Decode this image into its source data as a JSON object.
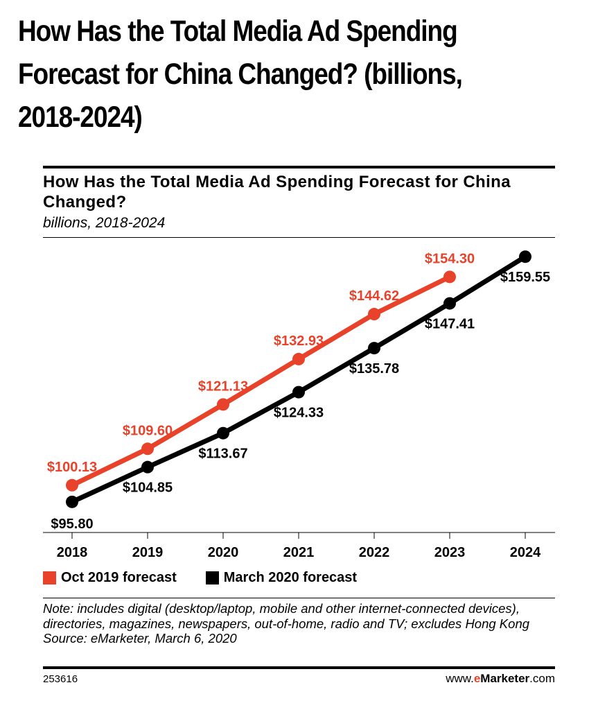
{
  "page": {
    "title": "How Has the Total Media Ad Spending Forecast for China Changed? (billions, 2018-2024)"
  },
  "colors": {
    "oct_2019": "#e8422a",
    "march_2020": "#000000",
    "brand_accent": "#e8422a"
  },
  "chart_data": {
    "type": "line",
    "title": "How Has the Total Media Ad Spending Forecast for China Changed?",
    "subtitle": "billions, 2018-2024",
    "x": [
      "2018",
      "2019",
      "2020",
      "2021",
      "2022",
      "2023",
      "2024"
    ],
    "ylim": [
      90,
      165
    ],
    "grid": false,
    "legend_position": "bottom-left",
    "series": [
      {
        "name": "Oct 2019 forecast",
        "color": "#e8422a",
        "values": [
          100.13,
          109.6,
          121.13,
          132.93,
          144.62,
          154.3,
          null
        ],
        "labels": [
          "$100.13",
          "$109.60",
          "$121.13",
          "$132.93",
          "$144.62",
          "$154.30",
          null
        ]
      },
      {
        "name": "March 2020 forecast",
        "color": "#000000",
        "values": [
          95.8,
          104.85,
          113.67,
          124.33,
          135.78,
          147.41,
          159.55
        ],
        "labels": [
          "$95.80",
          "$104.85",
          "$113.67",
          "$124.33",
          "$135.78",
          "$147.41",
          "$159.55"
        ]
      }
    ]
  },
  "legend": {
    "items": [
      {
        "label": "Oct 2019 forecast",
        "color": "#e8422a"
      },
      {
        "label": "March 2020 forecast",
        "color": "#000000"
      }
    ]
  },
  "footer": {
    "note": "Note: includes digital (desktop/laptop, mobile and other internet-connected devices), directories, magazines, newspapers, out-of-home, radio and TV; excludes Hong Kong",
    "source": "Source: eMarketer, March 6, 2020",
    "chart_id": "253616",
    "brand_prefix": "www.",
    "brand_e": "e",
    "brand_name": "Marketer",
    "brand_suffix": ".com"
  }
}
